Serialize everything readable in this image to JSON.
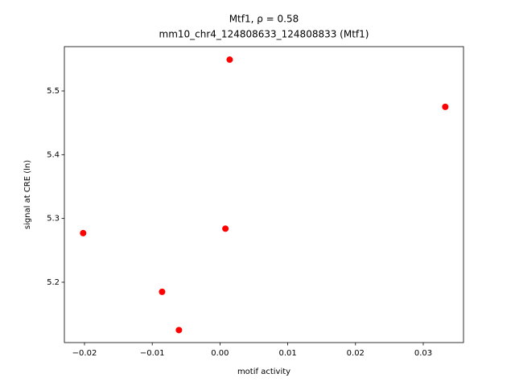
{
  "chart_data": {
    "type": "scatter",
    "title": "Mtf1, ρ = 0.58",
    "subtitle": "mm10_chr4_124808633_124808833 (Mtf1)",
    "x_label": "motif activity",
    "y_label": "signal at CRE (ln)",
    "color": "#ff0000",
    "x": [
      0.00143,
      0.03325,
      -0.0202,
      0.0008,
      -0.00855,
      -0.00606
    ],
    "values": [
      5.549,
      5.475,
      5.277,
      5.284,
      5.185,
      5.125
    ],
    "xlim": [
      -0.02297,
      0.03594
    ],
    "ylim": [
      5.1054,
      5.5694
    ],
    "xticks": [
      {
        "value": -0.02,
        "label": "−0.02"
      },
      {
        "value": -0.01,
        "label": "−0.01"
      },
      {
        "value": 0,
        "label": "0.00"
      },
      0.01,
      0.02,
      0.03
    ],
    "yticks": [
      5.2,
      5.3,
      5.4,
      5.5
    ]
  }
}
